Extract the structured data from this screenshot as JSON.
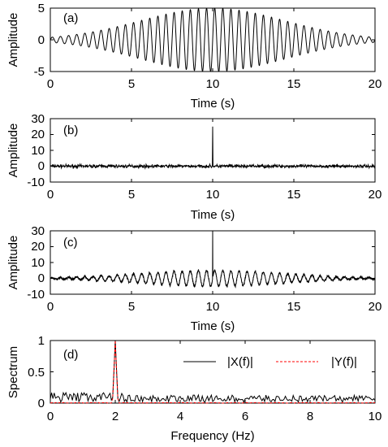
{
  "chart_data": [
    {
      "type": "line",
      "panel_label": "(a)",
      "xlabel": "Time (s)",
      "ylabel": "Amplitude",
      "xlim": [
        0,
        20
      ],
      "ylim": [
        -5,
        5
      ],
      "xticks": [
        0,
        5,
        10,
        15,
        20
      ],
      "yticks": [
        -5,
        0,
        5
      ],
      "grid": false,
      "series": [
        {
          "signal": "sinusoid",
          "frequency_hz": 2,
          "envelope": "gaussian",
          "peak_amplitude": 5,
          "peak_time_s": 10,
          "start_amplitude": 0.4,
          "color": "#000000"
        }
      ]
    },
    {
      "type": "line",
      "panel_label": "(b)",
      "xlabel": "Time (s)",
      "ylabel": "Amplitude",
      "xlim": [
        0,
        20
      ],
      "ylim": [
        -10,
        30
      ],
      "xticks": [
        0,
        5,
        10,
        15,
        20
      ],
      "yticks": [
        -10,
        0,
        10,
        20,
        30
      ],
      "grid": false,
      "series": [
        {
          "signal": "noise",
          "noise_amplitude": 1.5,
          "spike_time_s": 10,
          "spike_amplitude": 25,
          "color": "#000000"
        }
      ]
    },
    {
      "type": "line",
      "panel_label": "(c)",
      "xlabel": "Time (s)",
      "ylabel": "Amplitude",
      "xlim": [
        0,
        20
      ],
      "ylim": [
        -10,
        30
      ],
      "xticks": [
        0,
        5,
        10,
        15,
        20
      ],
      "yticks": [
        -10,
        0,
        10,
        20,
        30
      ],
      "grid": false,
      "series": [
        {
          "signal": "sinusoid_plus_noise",
          "frequency_hz": 2,
          "peak_amplitude": 5,
          "peak_time_s": 10,
          "noise_amplitude": 1.2,
          "spike_time_s": 10,
          "spike_amplitude": 30,
          "color": "#000000"
        }
      ]
    },
    {
      "type": "line",
      "panel_label": "(d)",
      "xlabel": "Frequency (Hz)",
      "ylabel": "Spectrum",
      "xlim": [
        0,
        10
      ],
      "ylim": [
        0,
        1
      ],
      "xticks": [
        0,
        2,
        4,
        6,
        8,
        10
      ],
      "yticks": [
        0,
        0.5,
        1
      ],
      "grid": false,
      "legend_position": "top-right",
      "series": [
        {
          "name": "|X(f)|",
          "color": "#000000",
          "style": "solid",
          "peak_freq_hz": 2,
          "peak_value": 1.0,
          "floor_value": 0.08
        },
        {
          "name": "|Y(f)|",
          "color": "#ff0000",
          "style": "dashed",
          "peak_freq_hz": 2,
          "peak_value": 1.0,
          "floor_value": 0.0
        }
      ]
    }
  ]
}
